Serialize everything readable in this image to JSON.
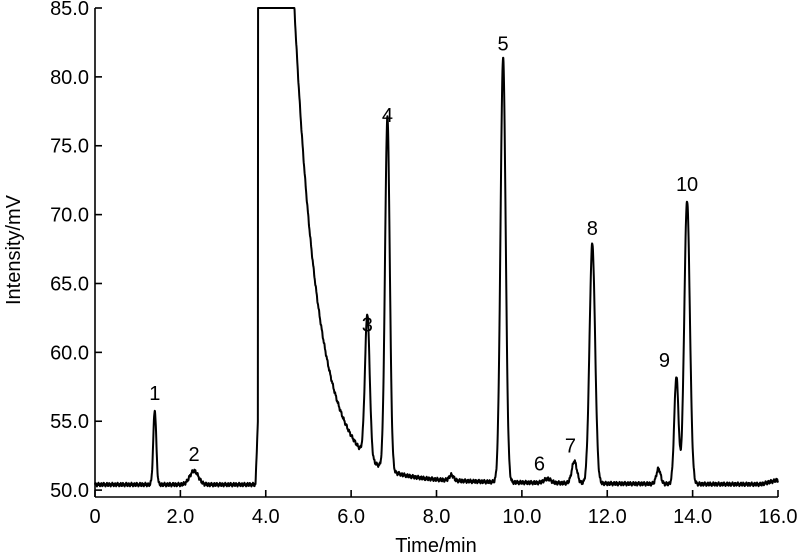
{
  "chart_data": {
    "type": "line",
    "title": "",
    "xlabel": "Time/min",
    "ylabel": "Intensity/mV",
    "xlim": [
      0,
      16.0
    ],
    "ylim": [
      49.5,
      85.0
    ],
    "grid": false,
    "legend": "none",
    "x_ticks": [
      0,
      2.0,
      4.0,
      6.0,
      8.0,
      10.0,
      12.0,
      14.0,
      16.0
    ],
    "x_tick_labels": [
      "0",
      "2.0",
      "4.0",
      "6.0",
      "8.0",
      "10.0",
      "12.0",
      "14.0",
      "16.0"
    ],
    "y_ticks": [
      50.0,
      55.0,
      60.0,
      65.0,
      70.0,
      75.0,
      80.0,
      85.0
    ],
    "y_tick_labels": [
      "50.0",
      "55.0",
      "60.0",
      "65.0",
      "70.0",
      "75.0",
      "80.0",
      "85.0"
    ],
    "baseline": 50.4,
    "peaks": [
      {
        "label": "1",
        "x": 1.4,
        "height": 55.8,
        "width": 0.035
      },
      {
        "label": "2",
        "x": 2.32,
        "height": 51.4,
        "width": 0.1
      },
      {
        "label": "3",
        "x": 6.38,
        "height": 60.8,
        "width": 0.055
      },
      {
        "label": "4",
        "x": 6.85,
        "height": 76.0,
        "width": 0.055
      },
      {
        "label": "5",
        "x": 9.56,
        "height": 81.2,
        "width": 0.06
      },
      {
        "label": "6",
        "x": 10.6,
        "height": 50.7,
        "width": 0.08
      },
      {
        "label": "7",
        "x": 11.23,
        "height": 52.0,
        "width": 0.06
      },
      {
        "label": "8",
        "x": 11.65,
        "height": 67.8,
        "width": 0.065
      },
      {
        "label": "9",
        "x": 13.62,
        "height": 58.2,
        "width": 0.05
      },
      {
        "label": "10",
        "x": 13.87,
        "height": 71.0,
        "width": 0.065
      }
    ],
    "solvent_peak": {
      "start": 3.82,
      "end": 4.62,
      "top": 85.0,
      "tail_decay": 0.55,
      "tail_amplitude": 37.0
    },
    "minor_bumps": [
      {
        "x": 13.2,
        "height": 51.5,
        "width": 0.05
      },
      {
        "x": 8.35,
        "height": 50.8,
        "width": 0.05
      }
    ]
  }
}
